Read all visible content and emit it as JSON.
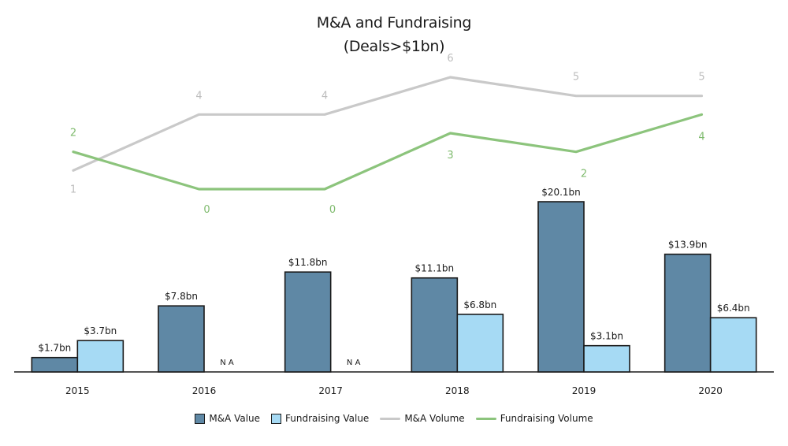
{
  "chart_data": {
    "type": "bar",
    "title": "M&A and Fundraising",
    "subtitle": "(Deals>$1bn)",
    "categories": [
      "2015",
      "2016",
      "2017",
      "2018",
      "2019",
      "2020"
    ],
    "bar_series": [
      {
        "name": "M&A Value",
        "color": "#5f88a5",
        "values": [
          1.7,
          7.8,
          11.8,
          11.1,
          20.1,
          13.9
        ],
        "labels": [
          "$1.7bn",
          "$7.8bn",
          "$11.8bn",
          "$11.1bn",
          "$20.1bn",
          "$13.9bn"
        ]
      },
      {
        "name": "Fundraising Value",
        "color": "#a6daf4",
        "values": [
          3.7,
          null,
          null,
          6.8,
          3.1,
          6.4
        ],
        "labels": [
          "$3.7bn",
          "N A",
          "N A",
          "$6.8bn",
          "$3.1bn",
          "$6.4bn"
        ]
      }
    ],
    "line_series": [
      {
        "name": "M&A Volume",
        "color": "#c9c9c9",
        "label_color": "#bdbdbd",
        "values": [
          1,
          4,
          4,
          6,
          5,
          5
        ]
      },
      {
        "name": "Fundraising Volume",
        "color": "#8cc47c",
        "label_color": "#7fbb6e",
        "values": [
          2,
          0,
          0,
          3,
          2,
          4
        ]
      }
    ],
    "bar_ylim": [
      0,
      21
    ],
    "line_ylim": [
      0,
      6
    ],
    "grid": false,
    "legend_position": "bottom-center"
  }
}
